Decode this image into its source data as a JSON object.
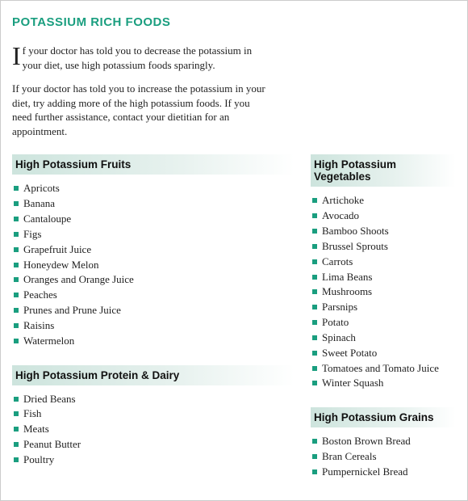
{
  "colors": {
    "accent": "#1a9e7f",
    "bullet": "#1a9e7f",
    "header_bg_start": "#cde4dd",
    "header_bg_end": "#ffffff",
    "text": "#222222"
  },
  "title": "POTASSIUM RICH FOODS",
  "intro": {
    "dropcap": "I",
    "p1_rest": "f your doctor has told you to decrease the potassium in your diet, use high potassium foods sparingly.",
    "p2": "If your doctor has told you to increase the potassium in your diet, try adding more of the high potassium foods. If you need further assistance, contact your dietitian for an appointment."
  },
  "sections": {
    "fruits": {
      "header": "High Potassium Fruits",
      "items": [
        "Apricots",
        "Banana",
        "Cantaloupe",
        "Figs",
        "Grapefruit Juice",
        "Honeydew Melon",
        "Oranges and Orange Juice",
        "Peaches",
        "Prunes and Prune Juice",
        "Raisins",
        "Watermelon"
      ]
    },
    "vegetables": {
      "header": "High Potassium Vegetables",
      "items": [
        "Artichoke",
        "Avocado",
        "Bamboo Shoots",
        "Brussel Sprouts",
        "Carrots",
        "Lima Beans",
        "Mushrooms",
        "Parsnips",
        "Potato",
        "Spinach",
        "Sweet Potato",
        "Tomatoes and Tomato Juice",
        "Winter Squash"
      ]
    },
    "protein": {
      "header": "High Potassium Protein & Dairy",
      "items": [
        "Dried Beans",
        "Fish",
        "Meats",
        "Peanut Butter",
        "Poultry"
      ]
    },
    "grains": {
      "header": "High Potassium Grains",
      "items": [
        "Boston Brown Bread",
        "Bran Cereals",
        "Pumpernickel Bread"
      ]
    }
  }
}
